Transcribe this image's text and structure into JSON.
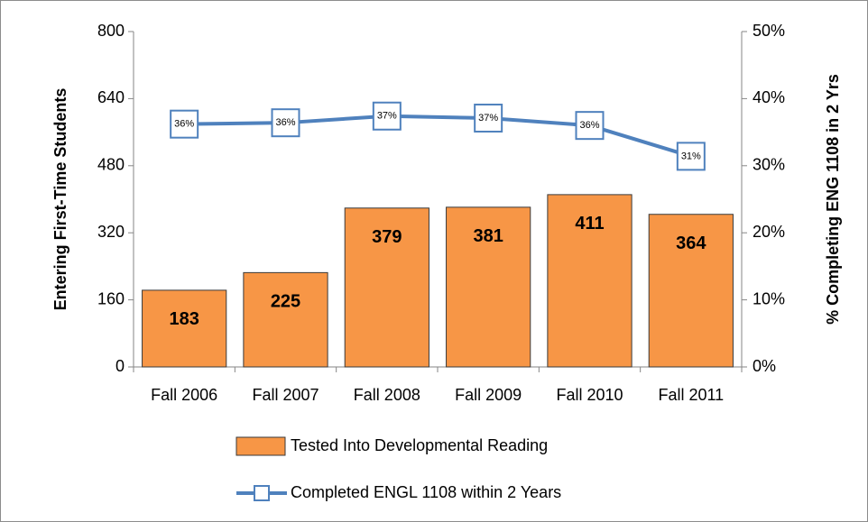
{
  "chart_data": {
    "type": "combo",
    "categories": [
      "Fall 2006",
      "Fall 2007",
      "Fall 2008",
      "Fall 2009",
      "Fall 2010",
      "Fall 2011"
    ],
    "ylabel": "Entering First-Time Students",
    "y2label": "% Completing ENG 1108 in 2 Yrs",
    "ylim": [
      0,
      800
    ],
    "yticks": [
      0,
      160,
      320,
      480,
      640,
      800
    ],
    "y2lim": [
      0,
      50
    ],
    "y2ticks": [
      {
        "value": 0,
        "label": "0%"
      },
      {
        "value": 10,
        "label": "10%"
      },
      {
        "value": 20,
        "label": "20%"
      },
      {
        "value": 30,
        "label": "30%"
      },
      {
        "value": 40,
        "label": "40%"
      },
      {
        "value": 50,
        "label": "50%"
      }
    ],
    "grid": false,
    "legend": "bottom",
    "series": [
      {
        "name": "Tested Into Developmental Reading",
        "type": "bar",
        "color": "#f79646",
        "values": [
          183,
          225,
          379,
          381,
          411,
          364
        ]
      },
      {
        "name": "Completed ENGL 1108 within 2 Years",
        "type": "line",
        "axis": "y2",
        "color": "#4f81bd",
        "values": [
          36.2,
          36.4,
          37.4,
          37.1,
          36.0,
          31.4
        ],
        "value_labels": [
          "36%",
          "36%",
          "37%",
          "37%",
          "36%",
          "31%"
        ]
      }
    ]
  }
}
